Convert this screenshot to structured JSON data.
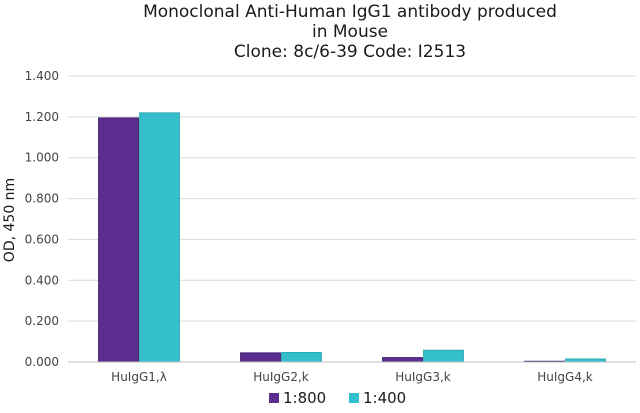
{
  "chart_data": {
    "type": "bar",
    "title_lines": [
      "Monoclonal Anti-Human IgG1 antibody produced",
      "in Mouse",
      "Clone: 8c/6-39  Code: I2513"
    ],
    "xlabel": "",
    "ylabel": "OD, 450 nm",
    "categories": [
      "HuIgG1,λ",
      "HuIgG2,k",
      "HuIgG3,k",
      "HuIgG4,k"
    ],
    "series": [
      {
        "name": "1:800",
        "color": "#5b2d8e",
        "values": [
          1.195,
          0.045,
          0.022,
          0.004
        ]
      },
      {
        "name": "1:400",
        "color": "#33c0cc",
        "values": [
          1.22,
          0.047,
          0.058,
          0.015
        ]
      }
    ],
    "ylim": [
      0,
      1.4
    ],
    "yticks": [
      "0.000",
      "0.200",
      "0.400",
      "0.600",
      "0.800",
      "1.000",
      "1.200",
      "1.400"
    ],
    "grid": true,
    "legend_position": "bottom"
  }
}
